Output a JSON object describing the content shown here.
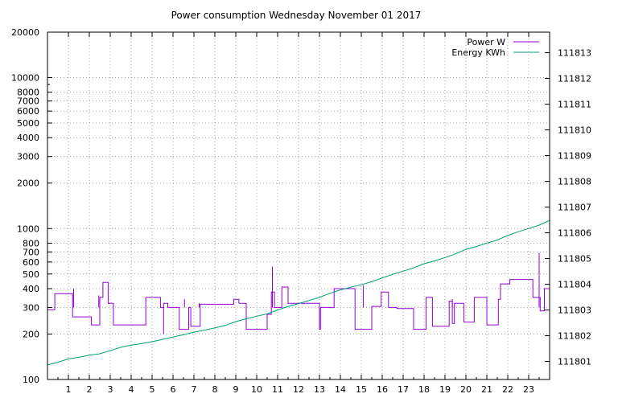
{
  "chart_data": {
    "type": "line",
    "title": "Power consumption Wednesday November 01 2017",
    "xlabel": "",
    "ylabel": "",
    "y2label": "",
    "grid": true,
    "legend_position": "top-right",
    "xlim": [
      0,
      24
    ],
    "ylim": [
      100,
      20000
    ],
    "y_scale": "log",
    "y2lim": [
      111800.3,
      111813.8
    ],
    "x_ticks": [
      1,
      2,
      3,
      4,
      5,
      6,
      7,
      8,
      9,
      10,
      11,
      12,
      13,
      14,
      15,
      16,
      17,
      18,
      19,
      20,
      21,
      22,
      23
    ],
    "x_tick_labels": [
      "1",
      "2",
      "3",
      "4",
      "5",
      "6",
      "7",
      "8",
      "9",
      "10",
      "11",
      "12",
      "13",
      "14",
      "15",
      "16",
      "17",
      "18",
      "19",
      "20",
      "21",
      "22",
      "23"
    ],
    "y_ticks": [
      100,
      200,
      300,
      400,
      500,
      600,
      700,
      800,
      1000,
      2000,
      3000,
      4000,
      5000,
      6000,
      7000,
      8000,
      10000,
      20000
    ],
    "y_tick_labels": [
      "100",
      "200",
      "300",
      "400",
      "500",
      "600",
      "700",
      "800",
      "1000",
      "2000",
      "3000",
      "4000",
      "5000",
      "6000",
      "7000",
      "8000",
      "10000",
      "20000"
    ],
    "y2_ticks": [
      111801,
      111802,
      111803,
      111804,
      111805,
      111806,
      111807,
      111808,
      111809,
      111810,
      111811,
      111812,
      111813
    ],
    "y2_tick_labels": [
      "111801",
      "111802",
      "111803",
      "111804",
      "111805",
      "111806",
      "111807",
      "111808",
      "111809",
      "111810",
      "111811",
      "111812",
      "111813"
    ],
    "series": [
      {
        "name": "Power W",
        "color": "#9400d3",
        "axis": "y",
        "step": true,
        "x": [
          0,
          0.35,
          1.2,
          2.1,
          2.5,
          2.65,
          2.9,
          3.15,
          3.8,
          4.7,
          5.4,
          5.55,
          5.75,
          6.3,
          6.75,
          6.85,
          7.3,
          8.1,
          8.9,
          9.15,
          9.5,
          10.5,
          10.7,
          10.85,
          11.2,
          11.5,
          13,
          13.05,
          13.7,
          13.9,
          14.7,
          15.1,
          15.5,
          15.95,
          16.3,
          16.7,
          17.5,
          18.1,
          18.4,
          19.2,
          19.35,
          19.45,
          19.9,
          20.4,
          21,
          21.55,
          21.65,
          22.1,
          23.2,
          23.55,
          23.75,
          24
        ],
        "y": [
          290,
          370,
          260,
          230,
          350,
          440,
          320,
          230,
          230,
          350,
          300,
          320,
          300,
          215,
          300,
          225,
          315,
          315,
          340,
          320,
          215,
          270,
          380,
          300,
          410,
          320,
          215,
          300,
          400,
          400,
          215,
          215,
          305,
          380,
          300,
          295,
          215,
          350,
          225,
          330,
          235,
          320,
          240,
          350,
          230,
          340,
          430,
          460,
          350,
          285,
          400,
          500
        ]
      },
      {
        "name": "Energy KWh",
        "color": "#009e73",
        "axis": "y2",
        "x": [
          0,
          0.5,
          1,
          1.5,
          2,
          2.5,
          3,
          3.5,
          4,
          4.5,
          5,
          5.5,
          6,
          6.5,
          7,
          7.5,
          8,
          8.5,
          9,
          9.5,
          10,
          10.5,
          11,
          11.5,
          12,
          12.5,
          13,
          13.5,
          14,
          14.5,
          15,
          15.5,
          16,
          16.5,
          17,
          17.5,
          18,
          18.5,
          19,
          19.5,
          20,
          20.5,
          21,
          21.5,
          22,
          22.5,
          23,
          23.5,
          24
        ],
        "y": [
          111800.87,
          111800.97,
          111801.1,
          111801.17,
          111801.24,
          111801.3,
          111801.42,
          111801.55,
          111801.63,
          111801.7,
          111801.77,
          111801.86,
          111801.95,
          111802.04,
          111802.14,
          111802.22,
          111802.31,
          111802.4,
          111802.55,
          111802.66,
          111802.76,
          111802.85,
          111803.0,
          111803.14,
          111803.25,
          111803.37,
          111803.49,
          111803.65,
          111803.78,
          111803.89,
          111803.98,
          111804.1,
          111804.25,
          111804.39,
          111804.51,
          111804.64,
          111804.8,
          111804.91,
          111805.04,
          111805.18,
          111805.36,
          111805.47,
          111805.6,
          111805.72,
          111805.9,
          111806.04,
          111806.17,
          111806.3,
          111806.48
        ]
      }
    ]
  }
}
